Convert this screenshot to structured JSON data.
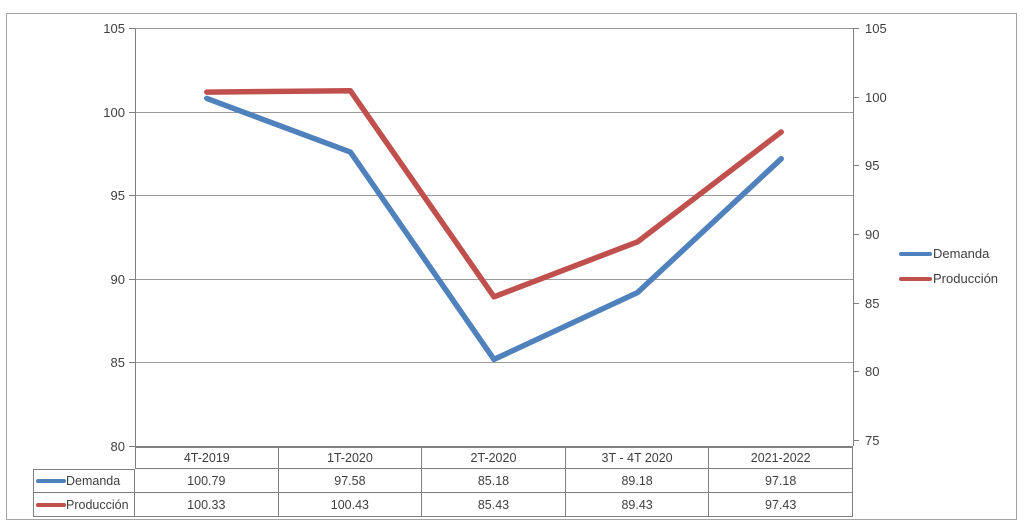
{
  "chart_data": {
    "type": "line",
    "categories": [
      "4T-2019",
      "1T-2020",
      "2T-2020",
      "3T - 4T 2020",
      "2021-2022"
    ],
    "series": [
      {
        "name": "Demanda",
        "color": "#4F81BD",
        "axis": "left",
        "values": [
          100.79,
          97.58,
          85.18,
          89.18,
          97.18
        ]
      },
      {
        "name": "Producción",
        "color": "#C0504D",
        "axis": "right",
        "values": [
          100.33,
          100.43,
          85.43,
          89.43,
          97.43
        ]
      }
    ],
    "left_axis": {
      "min": 80,
      "max": 105,
      "ticks": [
        105,
        100,
        95,
        90,
        85,
        80
      ]
    },
    "right_axis": {
      "min": 75,
      "max": 105,
      "ticks": [
        105,
        100,
        95,
        90,
        85,
        80,
        75
      ]
    },
    "legend": {
      "position": "right",
      "items": [
        "Demanda",
        "Producción"
      ]
    },
    "grid": true,
    "data_table": true,
    "value_decimals": 2,
    "title": "",
    "xlabel": "",
    "ylabel": ""
  },
  "colors": {
    "grid": "#9a9a9a",
    "axis": "#808080",
    "table_border": "#808080",
    "text": "#3f3f3f",
    "frame": "#a3a3a3",
    "series_blue": "#4F81BD",
    "series_red": "#C0504D"
  }
}
